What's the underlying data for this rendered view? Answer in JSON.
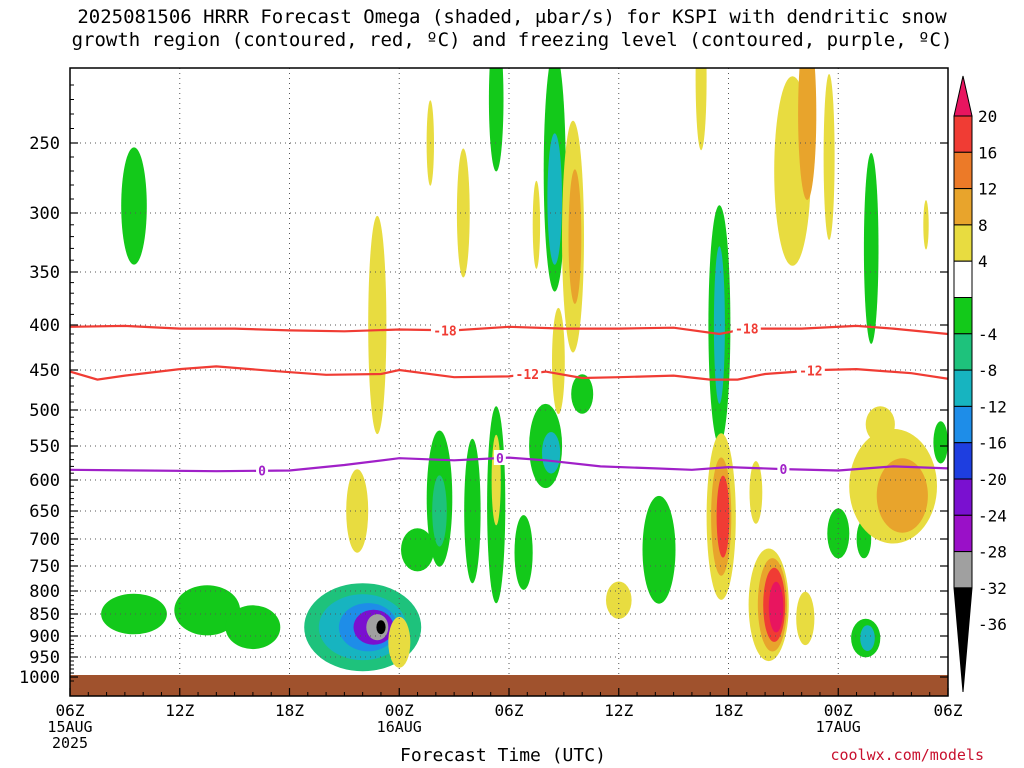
{
  "title_line1": "2025081506 HRRR Forecast Omega (shaded, μbar/s) for KSPI with dendritic snow",
  "title_line2": "growth region (contoured, red, ºC) and freezing level (contoured, purple, ºC)",
  "watermark": "coolwx.com/models",
  "chart_data": {
    "type": "heatmap",
    "title": "2025081506 HRRR Forecast Omega (shaded, μbar/s) for KSPI with dendritic snow growth region (contoured, red, ºC) and freezing level (contoured, purple, ºC)",
    "xlabel": "Forecast Time (UTC)",
    "ylabel": "",
    "x_unit": "hours from 2025-08-15 06Z",
    "xlim": [
      0,
      48
    ],
    "x_ticks": [
      {
        "x": 0,
        "label": "06Z",
        "sub": [
          "15AUG",
          "2025"
        ]
      },
      {
        "x": 6,
        "label": "12Z",
        "sub": []
      },
      {
        "x": 12,
        "label": "18Z",
        "sub": []
      },
      {
        "x": 18,
        "label": "00Z",
        "sub": [
          "16AUG"
        ]
      },
      {
        "x": 24,
        "label": "06Z",
        "sub": []
      },
      {
        "x": 30,
        "label": "12Z",
        "sub": []
      },
      {
        "x": 36,
        "label": "18Z",
        "sub": []
      },
      {
        "x": 42,
        "label": "00Z",
        "sub": [
          "17AUG"
        ]
      },
      {
        "x": 48,
        "label": "06Z",
        "sub": []
      }
    ],
    "y_ticks": [
      250,
      300,
      350,
      400,
      450,
      500,
      550,
      600,
      650,
      700,
      750,
      800,
      850,
      900,
      950,
      1000
    ],
    "y_scale": "reversed pressure (mb)",
    "ylim": [
      1020,
      200
    ],
    "grid": true,
    "colorbar": {
      "labels": [
        "20",
        "16",
        "12",
        "8",
        "4",
        "-4",
        "-8",
        "-12",
        "-16",
        "-20",
        "-24",
        "-28",
        "-32",
        "-36"
      ],
      "colors": [
        "#e8155f",
        "#f03c34",
        "#ec7a28",
        "#e8a42c",
        "#e8dc40",
        "#ffffff",
        "#13c91a",
        "#1ec27c",
        "#17b4c0",
        "#1e8de8",
        "#1e3ee0",
        "#7a10d0",
        "#9a10c8",
        "#a0a0a0",
        "#000000"
      ]
    },
    "features": [
      {
        "x": 3.5,
        "p": 295,
        "dx": 0.7,
        "dp": 45,
        "value": -6
      },
      {
        "x": 3.5,
        "p": 850,
        "dx": 1.8,
        "dp": 45,
        "value": -6
      },
      {
        "x": 7.5,
        "p": 842,
        "dx": 1.8,
        "dp": 55,
        "value": -6
      },
      {
        "x": 10,
        "p": 880,
        "dx": 1.5,
        "dp": 50,
        "value": -6
      },
      {
        "x": 16,
        "p": 880,
        "dx": 3.2,
        "dp": 100,
        "value": -8
      },
      {
        "x": 16,
        "p": 880,
        "dx": 2.4,
        "dp": 75,
        "value": -12
      },
      {
        "x": 16.3,
        "p": 880,
        "dx": 1.6,
        "dp": 55,
        "value": -18
      },
      {
        "x": 16.6,
        "p": 880,
        "dx": 1.1,
        "dp": 40,
        "value": -24
      },
      {
        "x": 16.8,
        "p": 880,
        "dx": 0.6,
        "dp": 30,
        "value": -33
      },
      {
        "x": 17,
        "p": 880,
        "dx": 0.25,
        "dp": 16,
        "value": -40
      },
      {
        "x": 15.7,
        "p": 650,
        "dx": 0.6,
        "dp": 70,
        "value": 5
      },
      {
        "x": 16.8,
        "p": 400,
        "dx": 0.5,
        "dp": 110,
        "value": 5
      },
      {
        "x": 18,
        "p": 915,
        "dx": 0.6,
        "dp": 60,
        "value": 5
      },
      {
        "x": 19,
        "p": 720,
        "dx": 0.9,
        "dp": 40,
        "value": -6
      },
      {
        "x": 20.2,
        "p": 630,
        "dx": 0.7,
        "dp": 110,
        "value": -6
      },
      {
        "x": 20.2,
        "p": 650,
        "dx": 0.4,
        "dp": 60,
        "value": -10
      },
      {
        "x": 22,
        "p": 650,
        "dx": 0.45,
        "dp": 120,
        "value": -6
      },
      {
        "x": 19.7,
        "p": 250,
        "dx": 0.2,
        "dp": 30,
        "value": 5
      },
      {
        "x": 21.5,
        "p": 300,
        "dx": 0.35,
        "dp": 50,
        "value": 5
      },
      {
        "x": 23.3,
        "p": 640,
        "dx": 0.5,
        "dp": 160,
        "value": -6
      },
      {
        "x": 23.3,
        "p": 220,
        "dx": 0.4,
        "dp": 50,
        "value": -6
      },
      {
        "x": 23.3,
        "p": 600,
        "dx": 0.25,
        "dp": 70,
        "value": 5
      },
      {
        "x": 24.8,
        "p": 725,
        "dx": 0.5,
        "dp": 70,
        "value": -6
      },
      {
        "x": 25.5,
        "p": 310,
        "dx": 0.2,
        "dp": 35,
        "value": 5
      },
      {
        "x": 26,
        "p": 550,
        "dx": 0.9,
        "dp": 60,
        "value": -6
      },
      {
        "x": 26.3,
        "p": 560,
        "dx": 0.5,
        "dp": 30,
        "value": -12
      },
      {
        "x": 26.5,
        "p": 270,
        "dx": 0.6,
        "dp": 90,
        "value": -6
      },
      {
        "x": 26.5,
        "p": 290,
        "dx": 0.4,
        "dp": 50,
        "value": -12
      },
      {
        "x": 26.7,
        "p": 440,
        "dx": 0.35,
        "dp": 60,
        "value": 5
      },
      {
        "x": 27.5,
        "p": 320,
        "dx": 0.6,
        "dp": 95,
        "value": 5
      },
      {
        "x": 27.6,
        "p": 320,
        "dx": 0.35,
        "dp": 55,
        "value": 10
      },
      {
        "x": 28,
        "p": 480,
        "dx": 0.6,
        "dp": 25,
        "value": -6
      },
      {
        "x": 30,
        "p": 820,
        "dx": 0.7,
        "dp": 40,
        "value": 5
      },
      {
        "x": 32.2,
        "p": 720,
        "dx": 0.9,
        "dp": 100,
        "value": -6
      },
      {
        "x": 34.5,
        "p": 205,
        "dx": 0.3,
        "dp": 50,
        "value": 5
      },
      {
        "x": 35.5,
        "p": 400,
        "dx": 0.6,
        "dp": 120,
        "value": -6
      },
      {
        "x": 35.5,
        "p": 400,
        "dx": 0.3,
        "dp": 80,
        "value": -12
      },
      {
        "x": 35.6,
        "p": 660,
        "dx": 0.8,
        "dp": 140,
        "value": 5
      },
      {
        "x": 35.6,
        "p": 660,
        "dx": 0.55,
        "dp": 100,
        "value": 10
      },
      {
        "x": 35.7,
        "p": 660,
        "dx": 0.35,
        "dp": 70,
        "value": 16
      },
      {
        "x": 37.5,
        "p": 620,
        "dx": 0.35,
        "dp": 50,
        "value": 5
      },
      {
        "x": 38.2,
        "p": 830,
        "dx": 1.1,
        "dp": 120,
        "value": 5
      },
      {
        "x": 38.4,
        "p": 830,
        "dx": 0.8,
        "dp": 100,
        "value": 10
      },
      {
        "x": 38.5,
        "p": 830,
        "dx": 0.6,
        "dp": 80,
        "value": 16
      },
      {
        "x": 38.6,
        "p": 835,
        "dx": 0.4,
        "dp": 55,
        "value": 22
      },
      {
        "x": 40.2,
        "p": 860,
        "dx": 0.5,
        "dp": 60,
        "value": 5
      },
      {
        "x": 39.5,
        "p": 270,
        "dx": 1.0,
        "dp": 70,
        "value": 5
      },
      {
        "x": 40.3,
        "p": 230,
        "dx": 0.5,
        "dp": 60,
        "value": 10
      },
      {
        "x": 41.5,
        "p": 260,
        "dx": 0.3,
        "dp": 60,
        "value": 5
      },
      {
        "x": 43.8,
        "p": 330,
        "dx": 0.4,
        "dp": 80,
        "value": -6
      },
      {
        "x": 42,
        "p": 690,
        "dx": 0.6,
        "dp": 45,
        "value": -6
      },
      {
        "x": 43.4,
        "p": 700,
        "dx": 0.4,
        "dp": 35,
        "value": -6
      },
      {
        "x": 43.5,
        "p": 905,
        "dx": 0.8,
        "dp": 45,
        "value": -6
      },
      {
        "x": 43.6,
        "p": 905,
        "dx": 0.4,
        "dp": 30,
        "value": -14
      },
      {
        "x": 45,
        "p": 610,
        "dx": 2.4,
        "dp": 90,
        "value": 5
      },
      {
        "x": 45.5,
        "p": 625,
        "dx": 1.4,
        "dp": 60,
        "value": 10
      },
      {
        "x": 44.3,
        "p": 520,
        "dx": 0.8,
        "dp": 25,
        "value": 5
      },
      {
        "x": 47.6,
        "p": 545,
        "dx": 0.4,
        "dp": 30,
        "value": -6
      },
      {
        "x": 46.8,
        "p": 310,
        "dx": 0.15,
        "dp": 20,
        "value": 5
      }
    ],
    "contours": [
      {
        "name": "-18",
        "color": "#f03c34",
        "labels": [
          {
            "x": 20.5,
            "label": "-18"
          },
          {
            "x": 37,
            "label": "-18"
          }
        ],
        "points": [
          [
            0,
            402
          ],
          [
            3,
            401
          ],
          [
            6,
            404
          ],
          [
            9,
            404
          ],
          [
            12,
            406
          ],
          [
            15,
            407
          ],
          [
            18,
            405
          ],
          [
            21,
            406
          ],
          [
            24,
            402
          ],
          [
            27,
            404
          ],
          [
            30,
            404
          ],
          [
            33,
            403
          ],
          [
            35.5,
            410
          ],
          [
            37,
            404
          ],
          [
            40,
            404
          ],
          [
            43,
            401
          ],
          [
            45,
            404
          ],
          [
            48,
            410
          ]
        ]
      },
      {
        "name": "-12",
        "color": "#f03c34",
        "labels": [
          {
            "x": 25,
            "label": "-12"
          },
          {
            "x": 40.5,
            "label": "-12"
          }
        ],
        "points": [
          [
            0,
            452
          ],
          [
            1.5,
            462
          ],
          [
            3,
            457
          ],
          [
            6,
            449
          ],
          [
            8,
            446
          ],
          [
            11,
            451
          ],
          [
            14,
            456
          ],
          [
            17,
            455
          ],
          [
            18,
            450
          ],
          [
            21,
            459
          ],
          [
            24,
            458
          ],
          [
            26,
            452
          ],
          [
            28,
            460
          ],
          [
            30,
            459
          ],
          [
            33,
            457
          ],
          [
            35,
            462
          ],
          [
            36.5,
            462
          ],
          [
            38,
            455
          ],
          [
            41,
            450
          ],
          [
            43,
            449
          ],
          [
            46,
            454
          ],
          [
            48,
            461
          ]
        ]
      },
      {
        "name": "0",
        "color": "#a020c8",
        "labels": [
          {
            "x": 10.5,
            "label": "0"
          },
          {
            "x": 23.5,
            "label": "0"
          },
          {
            "x": 39,
            "label": "0"
          }
        ],
        "points": [
          [
            0,
            585
          ],
          [
            4,
            586
          ],
          [
            8,
            587
          ],
          [
            12,
            586
          ],
          [
            15,
            578
          ],
          [
            18,
            568
          ],
          [
            21,
            571
          ],
          [
            24,
            567
          ],
          [
            26,
            571
          ],
          [
            29,
            580
          ],
          [
            32,
            583
          ],
          [
            34,
            585
          ],
          [
            36,
            581
          ],
          [
            39,
            584
          ],
          [
            42,
            586
          ],
          [
            45,
            580
          ],
          [
            48,
            583
          ]
        ]
      }
    ]
  }
}
